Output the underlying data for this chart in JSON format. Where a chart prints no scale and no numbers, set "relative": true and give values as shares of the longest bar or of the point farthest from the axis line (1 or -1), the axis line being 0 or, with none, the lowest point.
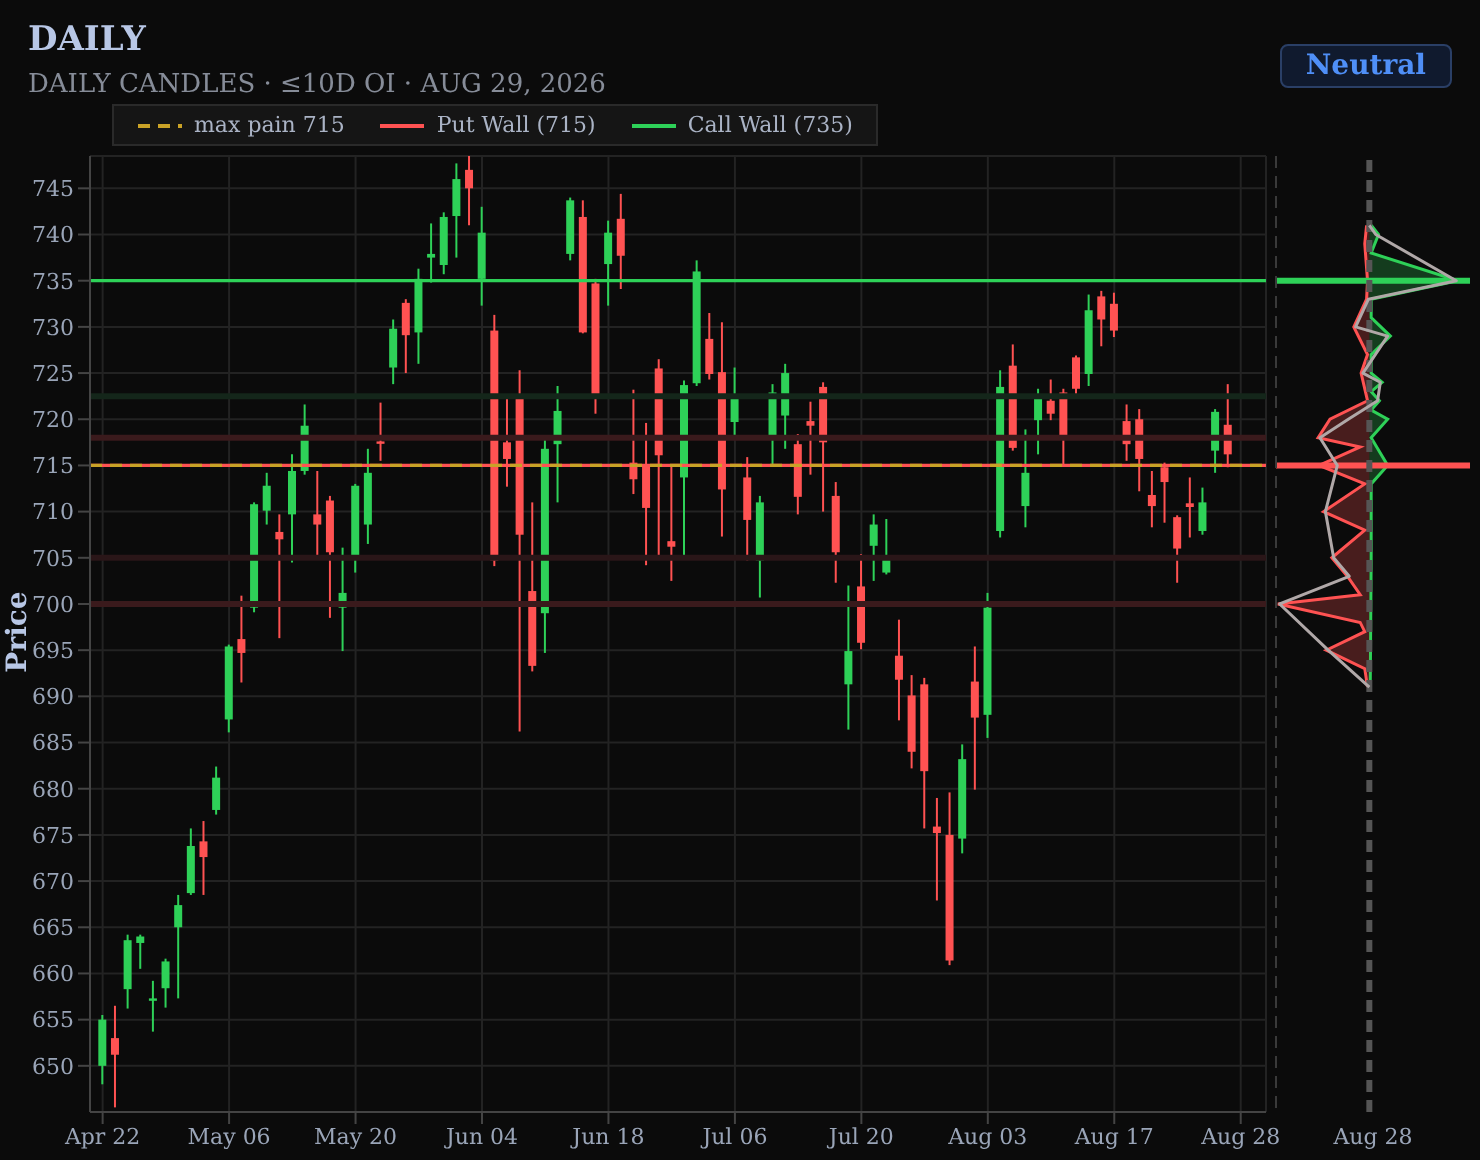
{
  "chart_data": [
    {
      "type": "candlestick",
      "title": "DAILY",
      "subtitle": "DAILY CANDLES · ≤10D OI · AUG 29, 2026",
      "ylabel": "Price",
      "annotations": [
        "Neutral"
      ],
      "categories": [
        "Apr 22",
        null,
        null,
        null,
        null,
        null,
        null,
        null,
        null,
        null,
        "May 06",
        null,
        null,
        null,
        null,
        null,
        null,
        null,
        null,
        null,
        "May 20",
        null,
        null,
        null,
        null,
        null,
        null,
        null,
        null,
        null,
        "Jun 04",
        null,
        null,
        null,
        null,
        null,
        null,
        null,
        null,
        null,
        "Jun 18",
        null,
        null,
        null,
        null,
        null,
        null,
        null,
        null,
        null,
        "Jul 06",
        null,
        null,
        null,
        null,
        null,
        null,
        null,
        null,
        null,
        "Jul 20",
        null,
        null,
        null,
        null,
        null,
        null,
        null,
        null,
        null,
        "Aug 03",
        null,
        null,
        null,
        null,
        null,
        null,
        null,
        null,
        null,
        "Aug 17",
        null,
        null,
        null,
        null,
        null,
        null,
        null,
        null,
        null,
        "Aug 28"
      ],
      "ohlc": [
        [
          650,
          655.5,
          648,
          655
        ],
        [
          653,
          656.5,
          645.5,
          651.2
        ],
        [
          658.3,
          664.2,
          656.2,
          663.6
        ],
        [
          663.3,
          664.2,
          660.5,
          664
        ],
        [
          657.1,
          659.2,
          653.7,
          657.3
        ],
        [
          658.4,
          661.6,
          656.3,
          661.3
        ],
        [
          665,
          668.5,
          657.3,
          667.4
        ],
        [
          668.7,
          675.7,
          668.5,
          673.8
        ],
        [
          674.3,
          676.5,
          668.5,
          672.6
        ],
        [
          677.7,
          682.4,
          677.2,
          681.2
        ],
        [
          687.5,
          695.6,
          686.1,
          695.4
        ],
        [
          696.2,
          700.9,
          691.5,
          694.7
        ],
        [
          699.6,
          711,
          699.1,
          710.8
        ],
        [
          710.1,
          714.2,
          708.6,
          712.8
        ],
        [
          707.8,
          709.7,
          696.3,
          707
        ],
        [
          709.7,
          716.2,
          704.5,
          714.4
        ],
        [
          714.4,
          721.6,
          714,
          719.3
        ],
        [
          709.7,
          714.4,
          705.2,
          708.6
        ],
        [
          711.2,
          711.7,
          698.5,
          705.6
        ],
        [
          699.6,
          706.1,
          694.9,
          701.2
        ],
        [
          704.9,
          713,
          703.4,
          712.8
        ],
        [
          708.6,
          716.8,
          706.5,
          714.2
        ],
        [
          717.6,
          721.8,
          715.5,
          717.4
        ],
        [
          725.6,
          730.8,
          723.8,
          729.8
        ],
        [
          732.6,
          733,
          725,
          729.1
        ],
        [
          729.4,
          736.3,
          726,
          735.2
        ],
        [
          737.5,
          741.2,
          734.8,
          737.9
        ],
        [
          736.7,
          742.4,
          735.7,
          741.9
        ],
        [
          742,
          747.7,
          737.5,
          746
        ],
        [
          747,
          748.5,
          741,
          745
        ],
        [
          735.2,
          743,
          732.3,
          740.2
        ],
        [
          729.6,
          731.3,
          704.1,
          704.7
        ],
        [
          717.5,
          722.7,
          712.7,
          715.7
        ],
        [
          722.7,
          725.3,
          686.2,
          707.5
        ],
        [
          701.4,
          711,
          692.7,
          693.3
        ],
        [
          699,
          718,
          694.7,
          716.8
        ],
        [
          717.3,
          723.6,
          711,
          720.9
        ],
        [
          737.9,
          744,
          737.2,
          743.7
        ],
        [
          741.9,
          743.7,
          729.3,
          729.4
        ],
        [
          734.7,
          735.2,
          720.6,
          722.2
        ],
        [
          736.8,
          741.5,
          732.3,
          740.2
        ],
        [
          741.7,
          744.4,
          734.1,
          737.7
        ],
        [
          715.3,
          723.2,
          711.9,
          713.5
        ],
        [
          715,
          719.6,
          704.2,
          710.4
        ],
        [
          725.5,
          726.5,
          705,
          716.1
        ],
        [
          706.8,
          715.1,
          702.5,
          706.2
        ],
        [
          713.7,
          724.2,
          704.9,
          723.7
        ],
        [
          723.9,
          737.2,
          723.6,
          736
        ],
        [
          728.7,
          731.5,
          724.3,
          724.9
        ],
        [
          725.1,
          730.5,
          707.3,
          712.4
        ],
        [
          719.7,
          725.6,
          718.3,
          722.4
        ],
        [
          713.7,
          715.9,
          704.7,
          709.1
        ],
        [
          704.7,
          711.7,
          700.7,
          711
        ],
        [
          718,
          723.8,
          715,
          722.9
        ],
        [
          720.4,
          726,
          716.8,
          725
        ],
        [
          717.3,
          718.4,
          709.7,
          711.6
        ],
        [
          719.8,
          721.9,
          714,
          719.3
        ],
        [
          723.5,
          724,
          710,
          717.5
        ],
        [
          711.7,
          713.2,
          702.3,
          705.6
        ],
        [
          691.3,
          702,
          686.4,
          694.9
        ],
        [
          701.9,
          705.4,
          695.1,
          695.8
        ],
        [
          706.3,
          709.7,
          702.5,
          708.6
        ],
        [
          703.4,
          709.2,
          703.2,
          705
        ],
        [
          694.4,
          698.3,
          687.4,
          691.8
        ],
        [
          690.1,
          692.3,
          682.2,
          684
        ],
        [
          691.3,
          692,
          675.7,
          681.9
        ],
        [
          675.9,
          679,
          667.9,
          675.2
        ],
        [
          675,
          679.6,
          660.9,
          661.4
        ],
        [
          674.6,
          684.8,
          673,
          683.2
        ],
        [
          691.6,
          695.4,
          679.9,
          687.7
        ],
        [
          688,
          701.2,
          685.5,
          699.6
        ],
        [
          707.9,
          725.3,
          707.2,
          723.5
        ],
        [
          725.8,
          728.1,
          716.6,
          716.9
        ],
        [
          710.6,
          718.9,
          708.3,
          714.2
        ],
        [
          719.9,
          723.3,
          716.2,
          722.6
        ],
        [
          722,
          724.3,
          719.9,
          720.6
        ],
        [
          722.9,
          723.3,
          715.1,
          718.2
        ],
        [
          726.7,
          726.9,
          722.6,
          723.3
        ],
        [
          724.9,
          733.5,
          723.6,
          731.8
        ],
        [
          733.3,
          733.9,
          727.9,
          730.8
        ],
        [
          732.5,
          733.7,
          728.9,
          729.6
        ],
        [
          719.8,
          721.6,
          715.5,
          717.3
        ],
        [
          720,
          721.1,
          712.2,
          715.7
        ],
        [
          711.8,
          714.4,
          708.3,
          710.6
        ],
        [
          714.8,
          715.3,
          708.8,
          713.2
        ],
        [
          709.4,
          709.6,
          702.3,
          706
        ],
        [
          710.9,
          713.7,
          707.2,
          710.5
        ],
        [
          707.9,
          712.6,
          707.5,
          711
        ],
        [
          716.6,
          721.1,
          714.2,
          720.8
        ],
        [
          719.4,
          723.8,
          714.8,
          716.2
        ],
        null
      ],
      "colors": [
        "#2ed158",
        "#ff5252",
        "#2ed158",
        "#2ed158",
        "#2ed158",
        "#2ed158",
        "#2ed158",
        "#2ed158",
        "#ff5252",
        "#2ed158",
        "#2ed158",
        "#ff5252",
        "#2ed158",
        "#2ed158",
        "#ff5252",
        "#2ed158",
        "#2ed158",
        "#ff5252",
        "#ff5252",
        "#2ed158",
        "#2ed158",
        "#2ed158",
        "#ff5252",
        "#2ed158",
        "#ff5252",
        "#2ed158",
        "#2ed158",
        "#2ed158",
        "#2ed158",
        "#ff5252",
        "#2ed158",
        "#ff5252",
        "#ff5252",
        "#ff5252",
        "#ff5252",
        "#2ed158",
        "#2ed158",
        "#2ed158",
        "#ff5252",
        "#ff5252",
        "#2ed158",
        "#ff5252",
        "#ff5252",
        "#ff5252",
        "#ff5252",
        "#ff5252",
        "#2ed158",
        "#2ed158",
        "#ff5252",
        "#ff5252",
        "#2ed158",
        "#ff5252",
        "#2ed158",
        "#2ed158",
        "#2ed158",
        "#ff5252",
        "#ff5252",
        "#ff5252",
        "#ff5252",
        "#2ed158",
        "#ff5252",
        "#2ed158",
        "#2ed158",
        "#ff5252",
        "#ff5252",
        "#ff5252",
        "#ff5252",
        "#ff5252",
        "#2ed158",
        "#ff5252",
        "#2ed158",
        "#2ed158",
        "#ff5252",
        "#2ed158",
        "#2ed158",
        "#ff5252",
        "#ff5252",
        "#ff5252",
        "#2ed158",
        "#ff5252",
        "#ff5252",
        "#ff5252",
        "#ff5252",
        "#ff5252",
        "#ff5252",
        "#ff5252",
        "#ff5252",
        "#2ed158",
        "#2ed158",
        "#ff5252",
        null
      ],
      "ylim": [
        645,
        748.5
      ],
      "yticks": [
        650,
        655,
        660,
        665,
        670,
        675,
        680,
        685,
        690,
        695,
        700,
        705,
        710,
        715,
        720,
        725,
        730,
        735,
        740,
        745
      ],
      "grid": true,
      "legend": "top",
      "ref_lines": [
        {
          "axis": "y",
          "value": 718,
          "color": "#3a1a1c"
        },
        {
          "axis": "y",
          "value": 705,
          "color": "#2a1618"
        },
        {
          "axis": "y",
          "value": 700,
          "color": "#3a1a1c"
        },
        {
          "axis": "y",
          "value": 722.5,
          "color": "#14261a"
        },
        {
          "axis": "y",
          "value": 735,
          "label": "Call Wall (735)",
          "color": "#2ed158"
        },
        {
          "axis": "y",
          "value": 715,
          "label": "Put Wall (715)",
          "color": "#ff5252"
        },
        {
          "axis": "y",
          "value": 715,
          "label": "max pain 715",
          "color": "#c9a227",
          "line_style": "dashed"
        }
      ]
    },
    {
      "type": "line",
      "orientation": "horizontal",
      "relative": true,
      "xlabel": "Aug 28",
      "ylim": [
        645,
        748.5
      ],
      "yticks": [
        650,
        655,
        660,
        665,
        670,
        675,
        680,
        685,
        690,
        695,
        700,
        705,
        710,
        715,
        720,
        725,
        730,
        735,
        740,
        745
      ],
      "tick_labels": false,
      "series": [
        {
          "type": "area",
          "color": "#2ed158",
          "x": [
            741,
            740,
            738,
            735,
            733,
            731,
            729,
            727,
            725,
            724,
            723,
            722,
            721,
            720,
            718,
            715,
            713,
            705,
            691
          ],
          "values": [
            0.02,
            0.1,
            0.02,
            0.97,
            0.02,
            0.02,
            0.23,
            0.02,
            0.02,
            0.14,
            0.02,
            0.11,
            0.02,
            0.2,
            0.02,
            0.2,
            0.02,
            0.02,
            0.01
          ]
        },
        {
          "type": "area",
          "color": "#ff5252",
          "x": [
            741,
            739,
            735,
            733,
            730,
            727,
            725,
            722,
            720,
            718,
            717,
            715,
            713,
            710,
            708,
            705,
            703,
            701,
            700,
            698,
            697,
            695,
            693,
            691
          ],
          "values": [
            -0.03,
            -0.05,
            -0.02,
            -0.03,
            -0.17,
            -0.02,
            -0.09,
            -0.02,
            -0.43,
            -0.56,
            -0.1,
            -0.55,
            -0.05,
            -0.5,
            -0.05,
            -0.41,
            -0.24,
            -0.1,
            -1,
            -0.1,
            -0.05,
            -0.47,
            -0.05,
            -0.02
          ]
        },
        {
          "type": "line",
          "color": "#b0a8a8",
          "x": [
            741,
            740,
            735,
            733,
            730,
            729,
            725,
            724,
            722,
            720,
            718,
            715,
            710,
            705,
            703,
            700,
            695,
            691
          ],
          "values": [
            0,
            0.07,
            0.95,
            -0.01,
            -0.15,
            0.2,
            -0.07,
            0.12,
            0.09,
            -0.23,
            -0.54,
            -0.35,
            -0.48,
            -0.39,
            -0.22,
            -0.98,
            -0.45,
            0
          ]
        }
      ],
      "ref_lines": [
        {
          "axis": "y",
          "value": 735,
          "color": "#2ed158"
        },
        {
          "axis": "y",
          "value": 715,
          "color": "#ff5252"
        },
        {
          "axis": "x",
          "value": 0,
          "color": "#555555",
          "line_style": "dashed"
        }
      ]
    }
  ]
}
